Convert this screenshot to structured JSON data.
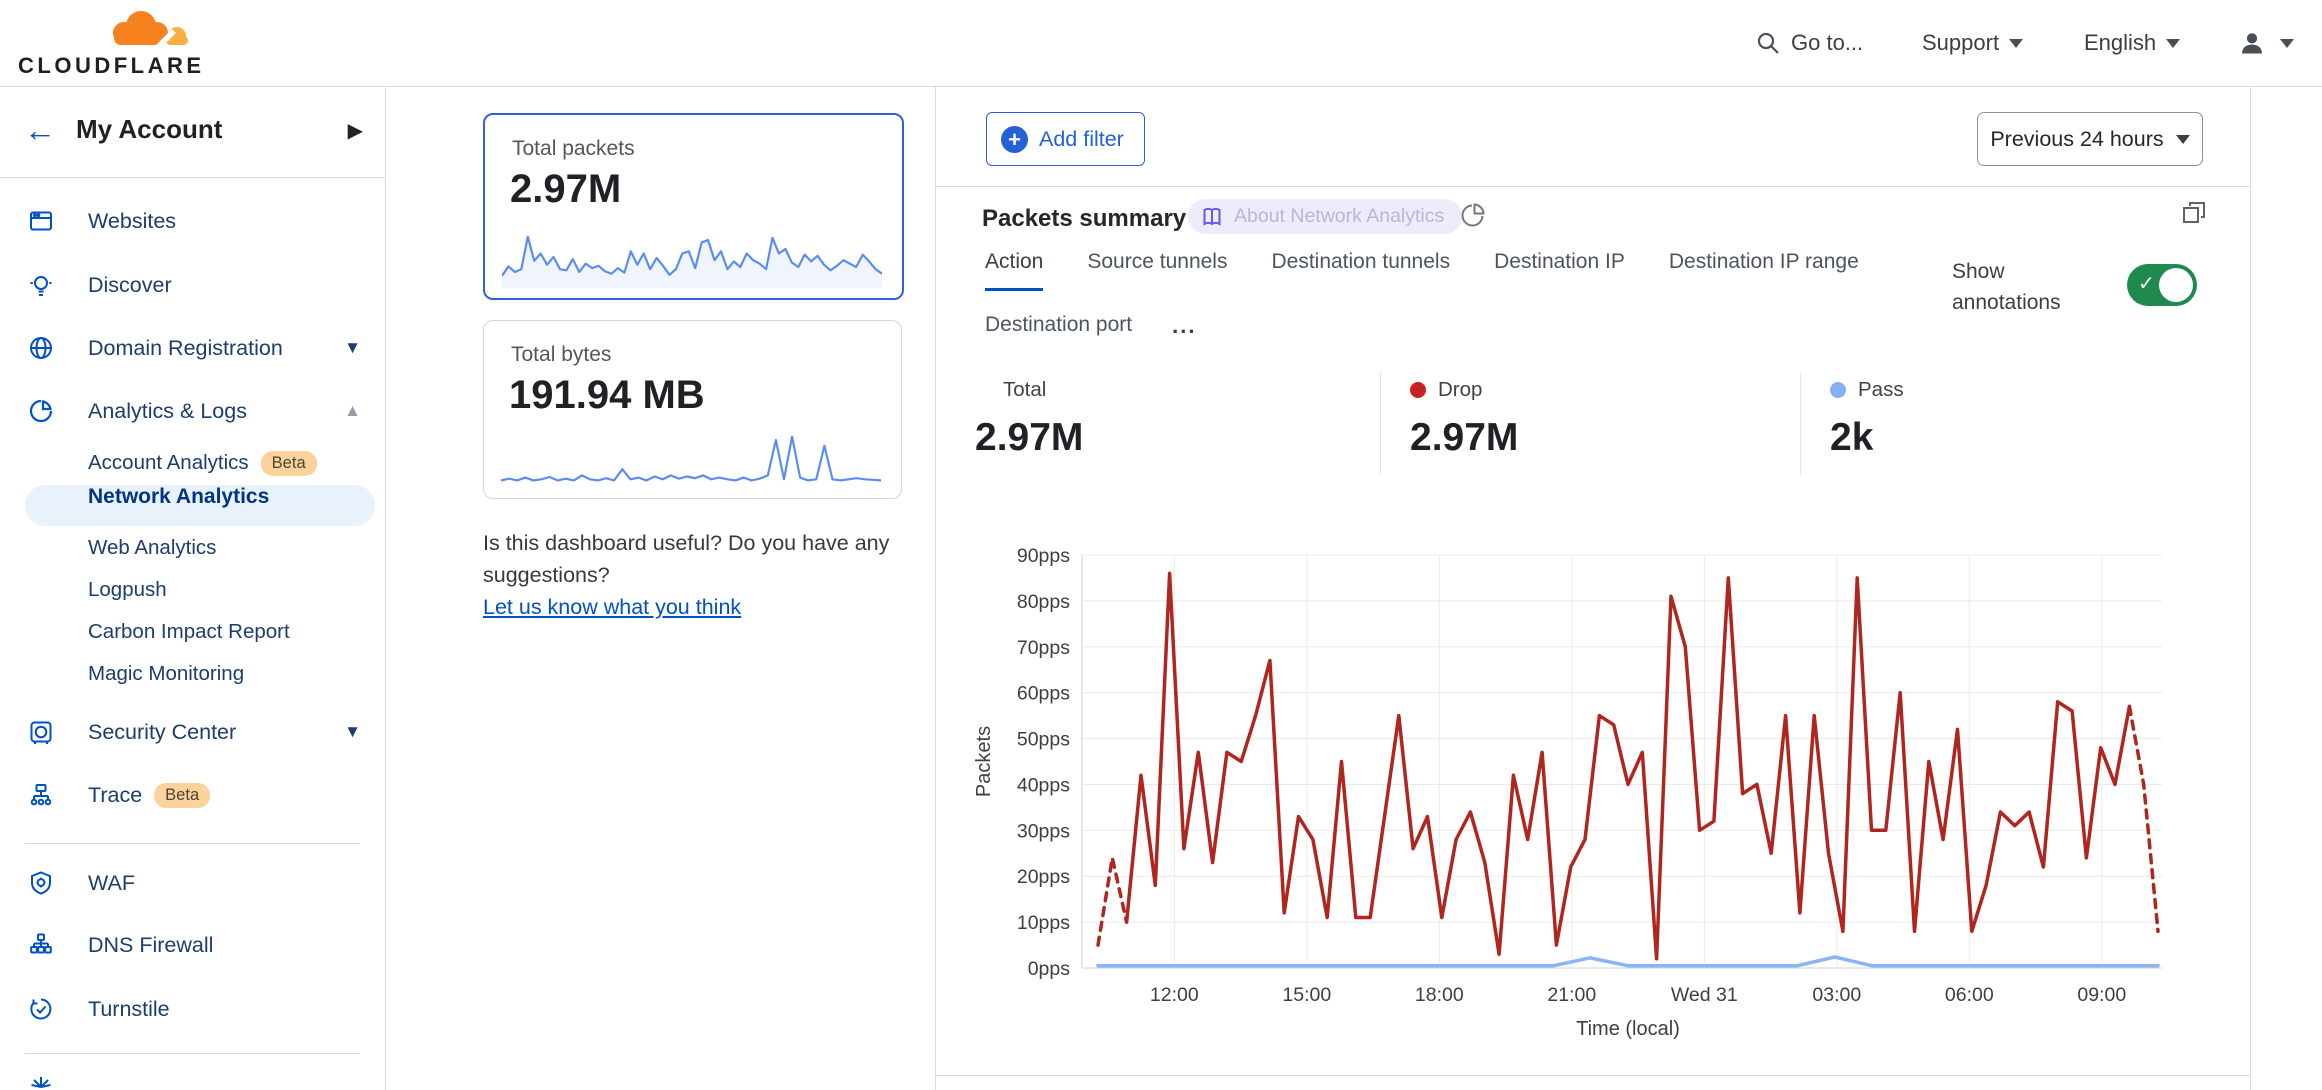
{
  "colors": {
    "accent_blue": "#0051c3",
    "selected_card_border": "#2f62d9",
    "drop_red": "#c5221f",
    "pass_blue": "#85b1f2",
    "chart_red": "#b0261e",
    "chart_pass_blue": "#8ab5f5",
    "toggle_on_green": "#1f8a4d",
    "beta_badge_bg": "#fcd29c",
    "brand_orange": "#f6821f"
  },
  "topbar": {
    "brand": "CLOUDFLARE",
    "goto": "Go to...",
    "support": "Support",
    "language": "English"
  },
  "sidebar": {
    "account": "My Account",
    "items": [
      {
        "label": "Websites"
      },
      {
        "label": "Discover"
      },
      {
        "label": "Domain Registration"
      },
      {
        "label": "Analytics & Logs"
      },
      {
        "label": "Account Analytics",
        "badge": "Beta"
      },
      {
        "label": "Network Analytics",
        "selected": true
      },
      {
        "label": "Web Analytics"
      },
      {
        "label": "Logpush"
      },
      {
        "label": "Carbon Impact Report"
      },
      {
        "label": "Magic Monitoring"
      },
      {
        "label": "Security Center"
      },
      {
        "label": "Trace",
        "badge": "Beta"
      },
      {
        "label": "WAF"
      },
      {
        "label": "DNS Firewall"
      },
      {
        "label": "Turnstile"
      }
    ]
  },
  "overview": {
    "cards": [
      {
        "title": "Total packets",
        "value": "2.97M",
        "selected": true,
        "sparkline": [
          18,
          35,
          25,
          30,
          88,
          45,
          58,
          38,
          52,
          30,
          28,
          48,
          25,
          40,
          32,
          36,
          26,
          22,
          32,
          24,
          62,
          38,
          58,
          30,
          50,
          36,
          20,
          30,
          58,
          62,
          32,
          78,
          82,
          46,
          62,
          30,
          44,
          34,
          58,
          46,
          40,
          30,
          86,
          58,
          66,
          42,
          34,
          56,
          44,
          54,
          38,
          28,
          36,
          46,
          40,
          34,
          56,
          44,
          30,
          22
        ]
      },
      {
        "title": "Total bytes",
        "value": "191.94 MB",
        "selected": false,
        "sparkline": [
          10,
          13,
          10,
          15,
          10,
          12,
          16,
          10,
          13,
          10,
          19,
          12,
          10,
          14,
          10,
          30,
          12,
          15,
          10,
          17,
          12,
          19,
          13,
          17,
          14,
          19,
          12,
          15,
          12,
          10,
          15,
          10,
          13,
          19,
          82,
          12,
          88,
          15,
          10,
          12,
          72,
          12,
          10,
          12,
          14,
          12,
          11,
          10
        ]
      }
    ],
    "feedback_line1": "Is this dashboard useful? Do you have any",
    "feedback_line2": "suggestions?",
    "feedback_link": "Let us know what you think"
  },
  "toolbar": {
    "add_filter": "Add filter",
    "time_range": "Previous 24 hours"
  },
  "panel": {
    "title": "Packets summary",
    "about_badge": "About Network Analytics",
    "tabs": [
      "Action",
      "Source tunnels",
      "Destination tunnels",
      "Destination IP",
      "Destination IP range",
      "Destination port"
    ],
    "active_tab": "Action",
    "more_tabs": "...",
    "show_annotations": "Show annotations",
    "stats": [
      {
        "label": "Total",
        "value": "2.97M",
        "dot": null
      },
      {
        "label": "Drop",
        "value": "2.97M",
        "dot": "#c5221f"
      },
      {
        "label": "Pass",
        "value": "2k",
        "dot": "#85b1f2"
      }
    ]
  },
  "chart_data": {
    "type": "line",
    "title": "Packets summary",
    "xlabel": "Time (local)",
    "ylabel": "Packets",
    "y_unit": "pps",
    "ylim": [
      0,
      90
    ],
    "ytick_step": 10,
    "x_span_hours": 24,
    "grid": true,
    "legend_position": "stats-row-above-chart",
    "xticks": [
      {
        "pos": 0.072,
        "label": "12:00"
      },
      {
        "pos": 0.197,
        "label": "15:00"
      },
      {
        "pos": 0.322,
        "label": "18:00"
      },
      {
        "pos": 0.447,
        "label": "21:00"
      },
      {
        "pos": 0.572,
        "label": "Wed 31"
      },
      {
        "pos": 0.697,
        "label": "03:00"
      },
      {
        "pos": 0.822,
        "label": "06:00"
      },
      {
        "pos": 0.947,
        "label": "09:00"
      }
    ],
    "series": [
      {
        "name": "Drop",
        "color": "#b0261e",
        "style": "solid-with-dashed-ends",
        "unit": "pps",
        "values": [
          5,
          24,
          10,
          42,
          18,
          86,
          26,
          47,
          23,
          47,
          45,
          55,
          67,
          12,
          33,
          28,
          11,
          45,
          11,
          11,
          33,
          55,
          26,
          33,
          11,
          28,
          34,
          23,
          3,
          42,
          28,
          47,
          5,
          22,
          28,
          55,
          53,
          40,
          47,
          2,
          81,
          70,
          30,
          32,
          85,
          38,
          40,
          25,
          55,
          12,
          55,
          25,
          8,
          85,
          30,
          30,
          60,
          8,
          45,
          28,
          52,
          8,
          18,
          34,
          31,
          34,
          22,
          58,
          56,
          24,
          48,
          40,
          57,
          40,
          8
        ]
      },
      {
        "name": "Pass",
        "color": "#8ab5f5",
        "style": "solid",
        "unit": "pps",
        "points": [
          [
            0,
            0.5
          ],
          [
            0.43,
            0.5
          ],
          [
            0.464,
            2.2
          ],
          [
            0.5,
            0.5
          ],
          [
            0.66,
            0.5
          ],
          [
            0.695,
            2.4
          ],
          [
            0.73,
            0.5
          ],
          [
            1,
            0.5
          ]
        ]
      }
    ]
  }
}
